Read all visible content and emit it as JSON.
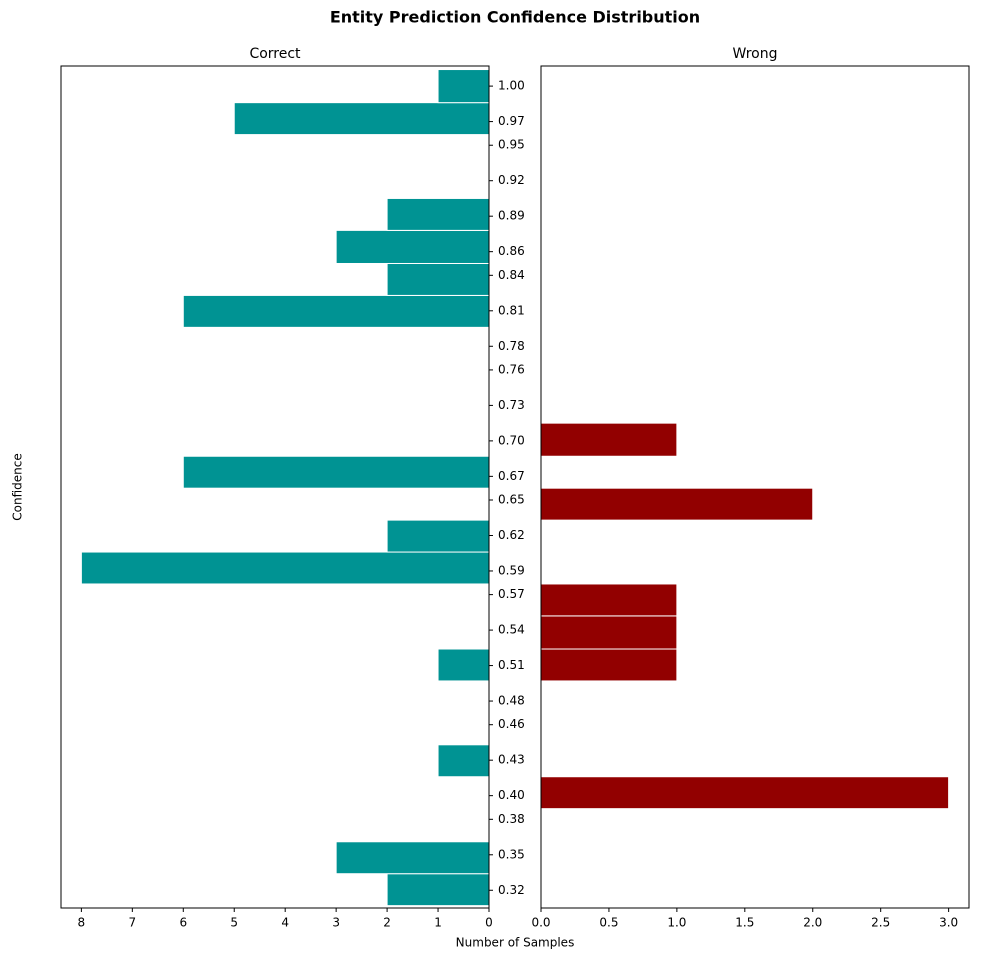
{
  "title": "Entity Prediction Confidence Distribution",
  "x_label": "Number of Samples",
  "y_label": "Confidence",
  "chart_data": [
    {
      "type": "histogram",
      "orientation": "horizontal",
      "title": "Correct",
      "color": "#009393",
      "bins": [
        0.307,
        0.334,
        0.361,
        0.389,
        0.416,
        0.443,
        0.47,
        0.497,
        0.524,
        0.552,
        0.579,
        0.606,
        0.633,
        0.66,
        0.687,
        0.715,
        0.742,
        0.769,
        0.796,
        0.823,
        0.85,
        0.878,
        0.905,
        0.932,
        0.959,
        0.986,
        1.014
      ],
      "counts": [
        2,
        3,
        0,
        0,
        1,
        0,
        0,
        1,
        0,
        0,
        8,
        2,
        0,
        6,
        0,
        0,
        0,
        0,
        6,
        2,
        3,
        2,
        0,
        0,
        5,
        1
      ],
      "xlim": [
        8.4,
        0
      ],
      "xticks": [
        8,
        7,
        6,
        5,
        4,
        3,
        2,
        1,
        0
      ],
      "ylim": [
        0.305,
        1.017
      ],
      "yticks": [
        {
          "value": 1,
          "label": "1.00"
        },
        0.97,
        0.95,
        0.92,
        0.89,
        0.86,
        0.84,
        0.81,
        0.78,
        0.76,
        0.73,
        {
          "value": 0.7,
          "label": "0.70"
        },
        0.67,
        0.65,
        0.62,
        0.59,
        0.57,
        0.54,
        0.51,
        0.48,
        0.46,
        0.43,
        {
          "value": 0.4,
          "label": "0.40"
        },
        0.38,
        0.35,
        0.32
      ]
    },
    {
      "type": "histogram",
      "orientation": "horizontal",
      "title": "Wrong",
      "color": "#920000",
      "bins": [
        0.307,
        0.334,
        0.361,
        0.389,
        0.416,
        0.443,
        0.47,
        0.497,
        0.524,
        0.552,
        0.579,
        0.606,
        0.633,
        0.66,
        0.687,
        0.715,
        0.742,
        0.769,
        0.796,
        0.823,
        0.85,
        0.878,
        0.905,
        0.932,
        0.959,
        0.986,
        1.014
      ],
      "counts": [
        0,
        0,
        0,
        3,
        0,
        0,
        0,
        1,
        1,
        1,
        0,
        0,
        2,
        0,
        1,
        0,
        0,
        0,
        0,
        0,
        0,
        0,
        0,
        0,
        0,
        0
      ],
      "xlim": [
        0,
        3.15
      ],
      "xticks": [
        {
          "value": 0,
          "label": "0.0"
        },
        0.5,
        {
          "value": 1,
          "label": "1.0"
        },
        1.5,
        {
          "value": 2,
          "label": "2.0"
        },
        2.5,
        {
          "value": 3,
          "label": "3.0"
        }
      ],
      "ylim": [
        0.305,
        1.017
      ]
    }
  ]
}
